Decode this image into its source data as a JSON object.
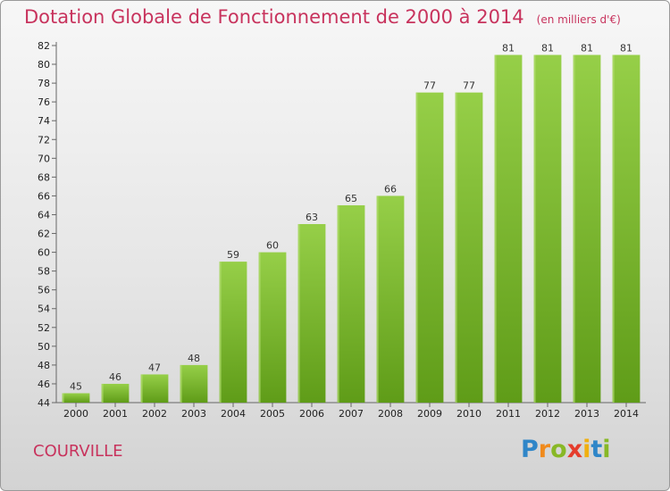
{
  "header": {
    "title": "Dotation Globale de Fonctionnement de 2000 à 2014",
    "subtitle": "(en milliers d'€)"
  },
  "footer": {
    "town": "COURVILLE",
    "logo_text": "Proxiti"
  },
  "chart_data": {
    "type": "bar",
    "title": "Dotation Globale de Fonctionnement de 2000 à 2014",
    "subtitle": "(en milliers d'€)",
    "xlabel": "",
    "ylabel": "",
    "categories": [
      "2000",
      "2001",
      "2002",
      "2003",
      "2004",
      "2005",
      "2006",
      "2007",
      "2008",
      "2009",
      "2010",
      "2011",
      "2012",
      "2013",
      "2014"
    ],
    "values": [
      45,
      46,
      47,
      48,
      59,
      60,
      63,
      65,
      66,
      77,
      77,
      81,
      81,
      81,
      81
    ],
    "ylim": [
      44,
      82
    ],
    "ytick_step": 2,
    "grid": false,
    "bar_color": "#8cc63f",
    "bar_color_dark": "#5e9a1a"
  }
}
